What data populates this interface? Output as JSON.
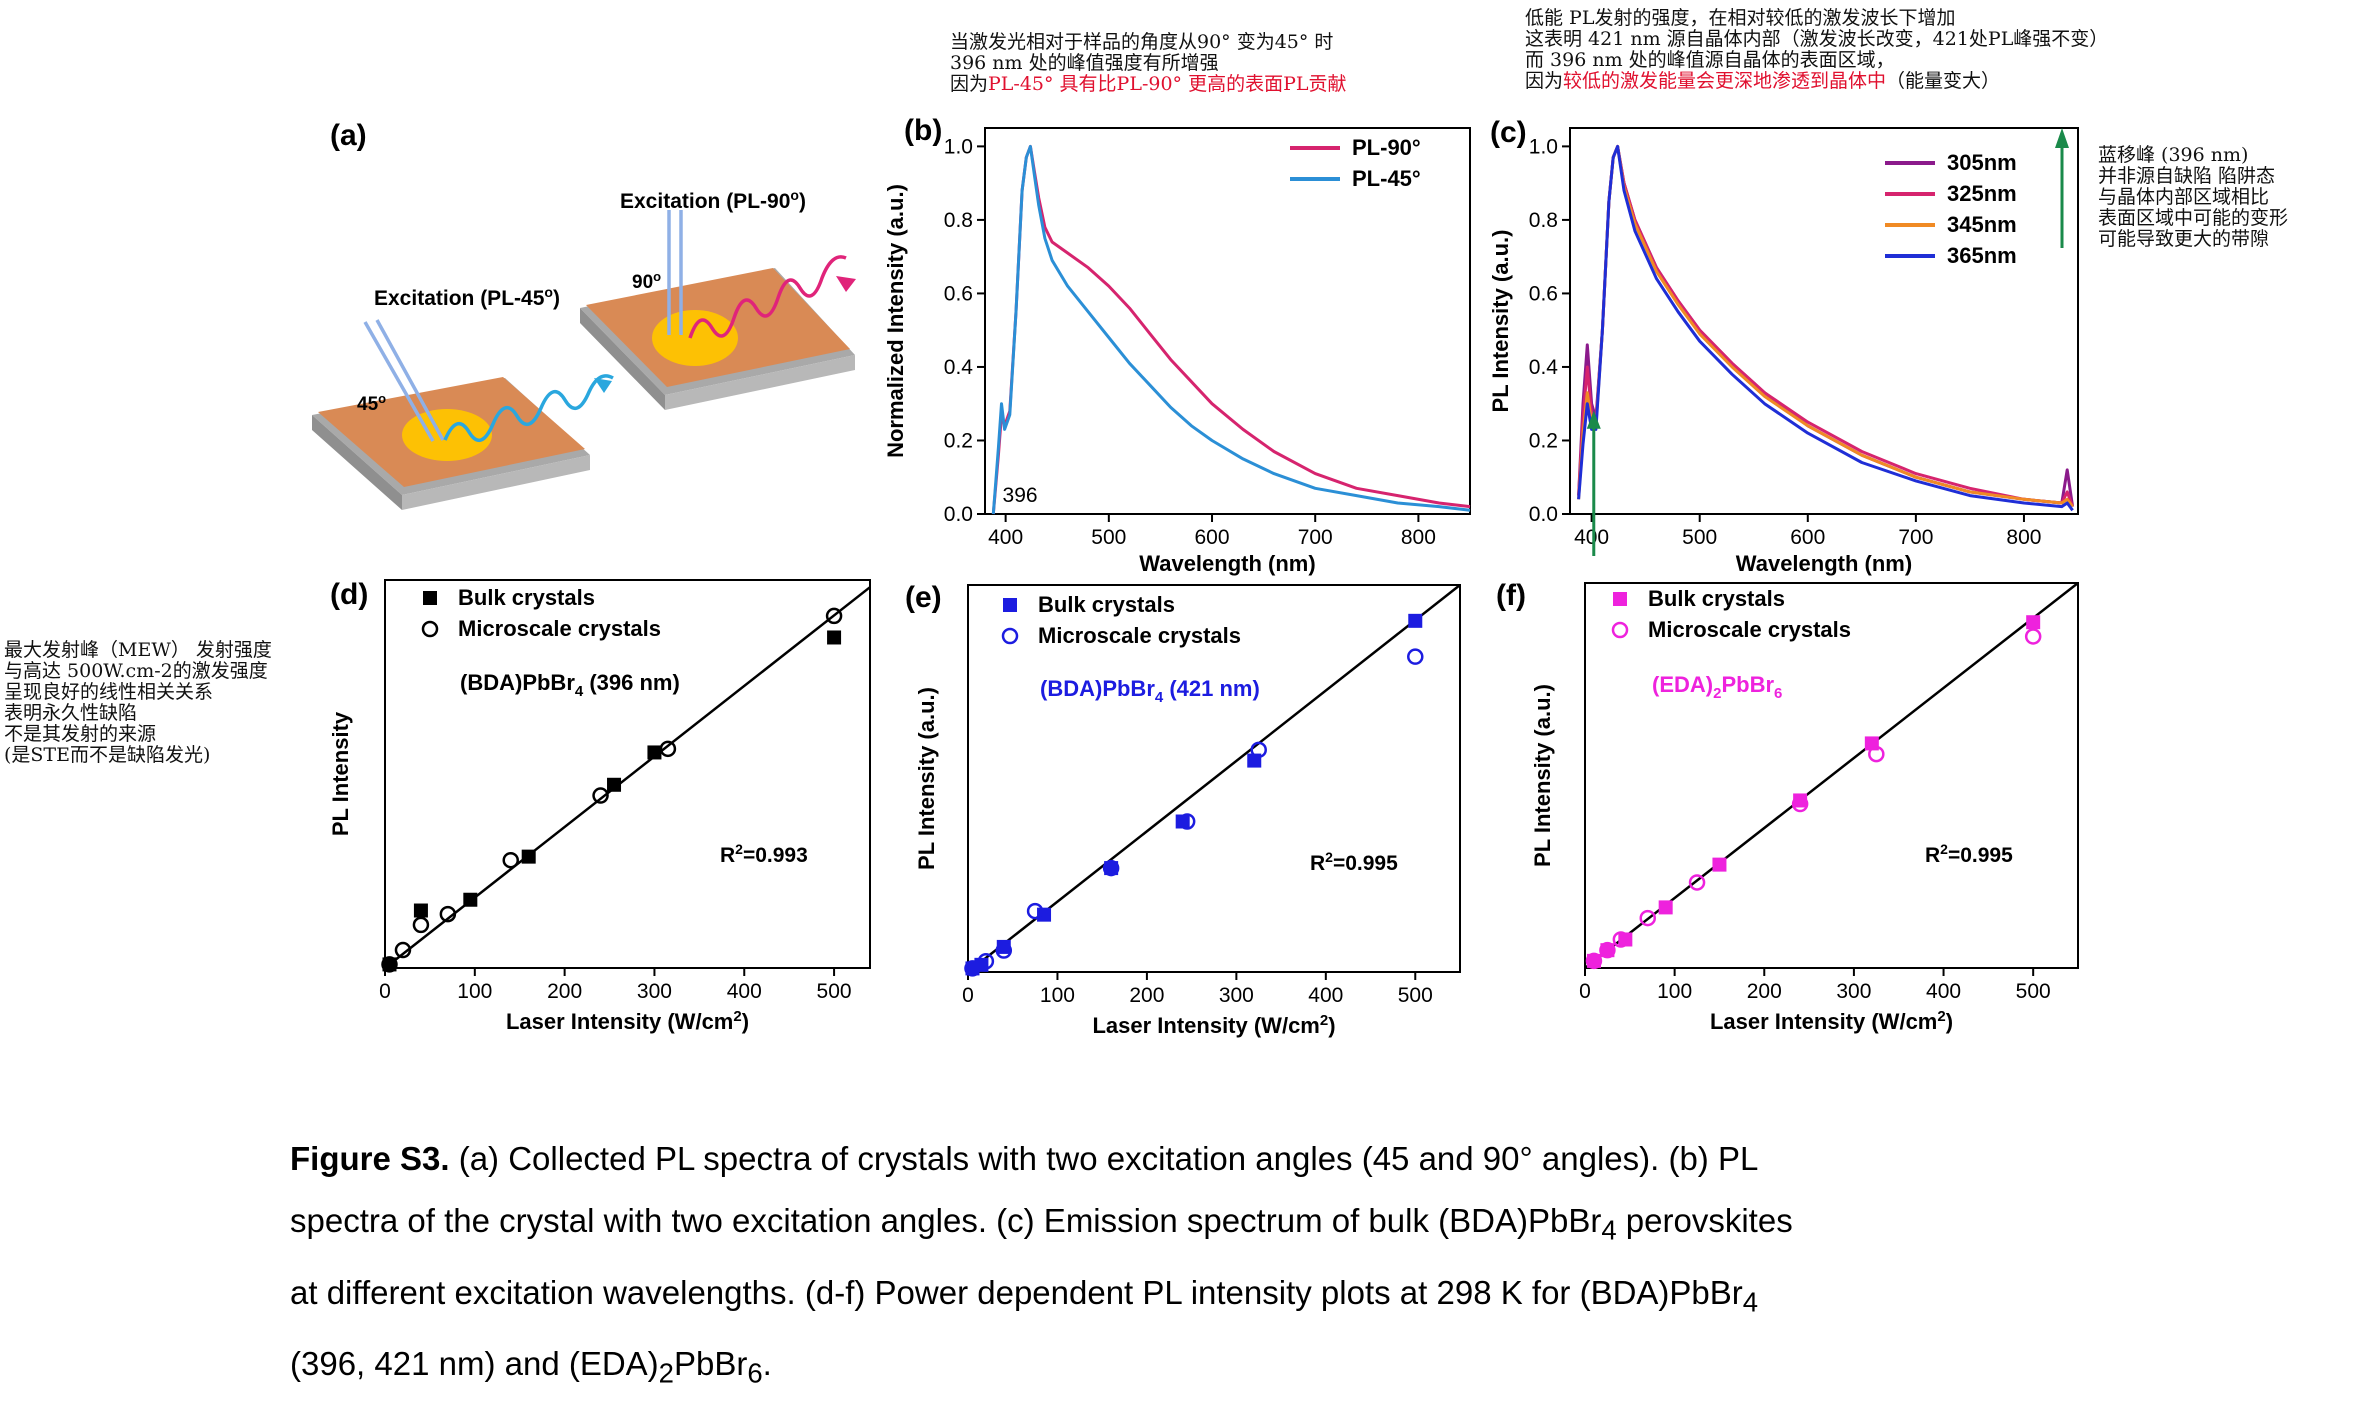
{
  "notes": {
    "top_b": [
      "当激发光相对于样品的角度从90° 变为45° 时",
      "396 nm 处的峰值强度有所增强",
      "因为",
      "PL-45° 具有比PL-90° 更高的表面PL贡献"
    ],
    "top_c": [
      "低能 PL发射的强度，在相对较低的激发波长下增加",
      "这表明 421 nm 源自晶体内部（激发波长改变，421处PL峰强不变）",
      "而 396 nm 处的峰值源自晶体的表面区域，",
      "因为",
      "较低的激发能量会更深地渗透到晶体中",
      "（能量变大）"
    ],
    "right_c": [
      "蓝移峰 (396 nm)",
      "并非源自缺陷 陷阱态",
      "与晶体内部区域相比",
      "表面区域中可能的变形",
      "可能导致更大的带隙"
    ],
    "left_d": [
      "最大发射峰（MEW） 发射强度",
      "与高达 500W.cm-2的激发强度",
      "呈现良好的线性相关关系",
      "",
      "表明永久性缺陷",
      "不是其发射的来源",
      "(是STE而不是缺陷发光)"
    ]
  },
  "caption": {
    "label": "Figure S3.",
    "line1": " (a) Collected PL spectra of crystals with two excitation angles (45 and 90° angles). (b) PL",
    "line2a": "spectra of the crystal with two excitation angles. (c) Emission spectrum of bulk (BDA)PbBr",
    "line2sub": "4",
    "line2b": " perovskites",
    "line3a": "at different excitation wavelengths. (d-f) Power dependent PL intensity plots at 298 K for (BDA)PbBr",
    "line3sub": "4",
    "line4a": "(396, 421 nm) and (EDA)",
    "line4sub1": "2",
    "line4b": "PbBr",
    "line4sub2": "6",
    "line4c": "."
  },
  "schematic": {
    "panel_label": "(a)",
    "excitation_45": "Excitation (PL-45",
    "excitation_90": "Excitation (PL-90",
    "deg_sup": "o",
    "close_paren": ")",
    "angle_45": "45",
    "angle_90": "90"
  },
  "chart_data": [
    {
      "panel": "(b)",
      "type": "line",
      "xlabel": "Wavelength (nm)",
      "ylabel": "Normalized Intensity (a.u.)",
      "xlim": [
        380,
        850
      ],
      "ylim": [
        0.0,
        1.05
      ],
      "xticks": [
        400,
        500,
        600,
        700,
        800
      ],
      "yticks": [
        0.0,
        0.2,
        0.4,
        0.6,
        0.8,
        1.0
      ],
      "annotation": "396",
      "legend_position": "top-right",
      "series": [
        {
          "name": "PL-90°",
          "color": "#d6246e",
          "x": [
            388,
            393,
            396,
            399,
            404,
            410,
            416,
            420,
            424,
            428,
            432,
            438,
            445,
            460,
            480,
            500,
            520,
            540,
            560,
            580,
            600,
            630,
            660,
            700,
            740,
            780,
            820,
            850
          ],
          "y": [
            0.0,
            0.16,
            0.27,
            0.24,
            0.28,
            0.55,
            0.88,
            0.97,
            1.0,
            0.93,
            0.86,
            0.78,
            0.74,
            0.71,
            0.67,
            0.62,
            0.56,
            0.49,
            0.42,
            0.36,
            0.3,
            0.23,
            0.17,
            0.11,
            0.07,
            0.05,
            0.03,
            0.02
          ]
        },
        {
          "name": "PL-45°",
          "color": "#2b8fd6",
          "x": [
            388,
            393,
            396,
            399,
            404,
            410,
            416,
            420,
            424,
            428,
            432,
            438,
            445,
            460,
            480,
            500,
            520,
            540,
            560,
            580,
            600,
            630,
            660,
            700,
            740,
            780,
            820,
            850
          ],
          "y": [
            0.0,
            0.18,
            0.3,
            0.23,
            0.27,
            0.55,
            0.88,
            0.97,
            1.0,
            0.92,
            0.84,
            0.75,
            0.69,
            0.62,
            0.55,
            0.48,
            0.41,
            0.35,
            0.29,
            0.24,
            0.2,
            0.15,
            0.11,
            0.07,
            0.05,
            0.03,
            0.02,
            0.01
          ]
        }
      ]
    },
    {
      "panel": "(c)",
      "type": "line",
      "xlabel": "Wavelength (nm)",
      "ylabel": "PL Intensity (a.u.)",
      "xlim": [
        380,
        850
      ],
      "ylim": [
        0.0,
        1.05
      ],
      "xticks": [
        400,
        500,
        600,
        700,
        800
      ],
      "yticks": [
        0.0,
        0.2,
        0.4,
        0.6,
        0.8,
        1.0
      ],
      "legend_position": "top-right",
      "series": [
        {
          "name": "305nm",
          "color": "#8b1a8b",
          "x": [
            388,
            392,
            396,
            400,
            404,
            410,
            416,
            420,
            424,
            430,
            440,
            460,
            480,
            500,
            530,
            560,
            600,
            650,
            700,
            750,
            800,
            835,
            840,
            845
          ],
          "y": [
            0.05,
            0.3,
            0.46,
            0.3,
            0.26,
            0.5,
            0.85,
            0.97,
            1.0,
            0.9,
            0.8,
            0.67,
            0.58,
            0.5,
            0.41,
            0.33,
            0.24,
            0.16,
            0.1,
            0.06,
            0.04,
            0.03,
            0.12,
            0.02
          ]
        },
        {
          "name": "325nm",
          "color": "#d6246e",
          "x": [
            388,
            392,
            396,
            400,
            404,
            410,
            416,
            420,
            424,
            430,
            440,
            460,
            480,
            500,
            530,
            560,
            600,
            650,
            700,
            750,
            800,
            835,
            840,
            845
          ],
          "y": [
            0.05,
            0.26,
            0.4,
            0.27,
            0.25,
            0.5,
            0.85,
            0.97,
            1.0,
            0.9,
            0.8,
            0.67,
            0.58,
            0.5,
            0.41,
            0.33,
            0.25,
            0.17,
            0.11,
            0.07,
            0.04,
            0.03,
            0.06,
            0.02
          ]
        },
        {
          "name": "345nm",
          "color": "#f08a24",
          "x": [
            388,
            392,
            396,
            400,
            404,
            410,
            416,
            420,
            424,
            430,
            440,
            460,
            480,
            500,
            530,
            560,
            600,
            650,
            700,
            750,
            800,
            835,
            840,
            845
          ],
          "y": [
            0.04,
            0.22,
            0.33,
            0.25,
            0.24,
            0.5,
            0.85,
            0.97,
            1.0,
            0.89,
            0.79,
            0.66,
            0.57,
            0.49,
            0.4,
            0.32,
            0.24,
            0.16,
            0.1,
            0.06,
            0.04,
            0.03,
            0.04,
            0.02
          ]
        },
        {
          "name": "365nm",
          "color": "#1f2ed6",
          "x": [
            388,
            392,
            396,
            400,
            404,
            410,
            416,
            420,
            424,
            430,
            440,
            460,
            480,
            500,
            530,
            560,
            600,
            650,
            700,
            750,
            800,
            835,
            840,
            845
          ],
          "y": [
            0.04,
            0.19,
            0.3,
            0.23,
            0.23,
            0.5,
            0.85,
            0.97,
            1.0,
            0.88,
            0.77,
            0.64,
            0.55,
            0.47,
            0.38,
            0.3,
            0.22,
            0.14,
            0.09,
            0.05,
            0.03,
            0.02,
            0.03,
            0.01
          ]
        }
      ]
    },
    {
      "panel": "(d)",
      "type": "scatter",
      "title": "(BDA)PbBr4 (396 nm)",
      "color": "#000000",
      "xlabel": "Laser Intensity (W/cm2)",
      "ylabel": "PL Intensity",
      "xlim": [
        0,
        540
      ],
      "ylim": [
        0,
        1.08
      ],
      "xticks": [
        0,
        100,
        200,
        300,
        400,
        500
      ],
      "r2": "R2=0.993",
      "fit": [
        [
          0,
          0.0
        ],
        [
          540,
          1.06
        ]
      ],
      "series": [
        {
          "name": "Bulk crystals",
          "marker": "square-filled",
          "x": [
            5,
            40,
            95,
            160,
            255,
            300,
            500
          ],
          "y": [
            0.01,
            0.16,
            0.19,
            0.31,
            0.51,
            0.6,
            0.92
          ]
        },
        {
          "name": "Microscale crystals",
          "marker": "circle-open",
          "x": [
            5,
            20,
            40,
            70,
            140,
            240,
            315,
            500
          ],
          "y": [
            0.01,
            0.05,
            0.12,
            0.15,
            0.3,
            0.48,
            0.61,
            0.98
          ]
        }
      ]
    },
    {
      "panel": "(e)",
      "type": "scatter",
      "title": "(BDA)PbBr4 (421 nm)",
      "color": "#1c1ce0",
      "xlabel": "Laser Intensity (W/cm2)",
      "ylabel": "PL Intensity (a.u.)",
      "xlim": [
        0,
        550
      ],
      "ylim": [
        0,
        1.08
      ],
      "xticks": [
        0,
        100,
        200,
        300,
        400,
        500
      ],
      "r2": "R2=0.995",
      "fit": [
        [
          0,
          0.0
        ],
        [
          550,
          1.08
        ]
      ],
      "series": [
        {
          "name": "Bulk crystals",
          "marker": "square-filled",
          "x": [
            5,
            15,
            40,
            85,
            160,
            240,
            320,
            500
          ],
          "y": [
            0.01,
            0.02,
            0.07,
            0.16,
            0.29,
            0.42,
            0.59,
            0.98
          ]
        },
        {
          "name": "Microscale crystals",
          "marker": "circle-open",
          "x": [
            5,
            20,
            40,
            75,
            160,
            245,
            325,
            500
          ],
          "y": [
            0.01,
            0.03,
            0.06,
            0.17,
            0.29,
            0.42,
            0.62,
            0.88
          ]
        }
      ]
    },
    {
      "panel": "(f)",
      "type": "scatter",
      "title": "(EDA)2PbBr6",
      "color": "#ee22dd",
      "xlabel": "Laser Intensity (W/cm2)",
      "ylabel": "PL Intensity (a.u.)",
      "xlim": [
        0,
        550
      ],
      "ylim": [
        0,
        1.08
      ],
      "xticks": [
        0,
        100,
        200,
        300,
        400,
        500
      ],
      "r2": "R2=0.995",
      "fit": [
        [
          0,
          0.0
        ],
        [
          550,
          1.08
        ]
      ],
      "series": [
        {
          "name": "Bulk crystals",
          "marker": "square-filled",
          "x": [
            10,
            25,
            45,
            90,
            150,
            240,
            320,
            500
          ],
          "y": [
            0.02,
            0.05,
            0.08,
            0.17,
            0.29,
            0.47,
            0.63,
            0.97
          ]
        },
        {
          "name": "Microscale crystals",
          "marker": "circle-open",
          "x": [
            10,
            25,
            40,
            70,
            125,
            240,
            325,
            500
          ],
          "y": [
            0.02,
            0.05,
            0.08,
            0.14,
            0.24,
            0.46,
            0.6,
            0.93
          ]
        }
      ]
    }
  ]
}
